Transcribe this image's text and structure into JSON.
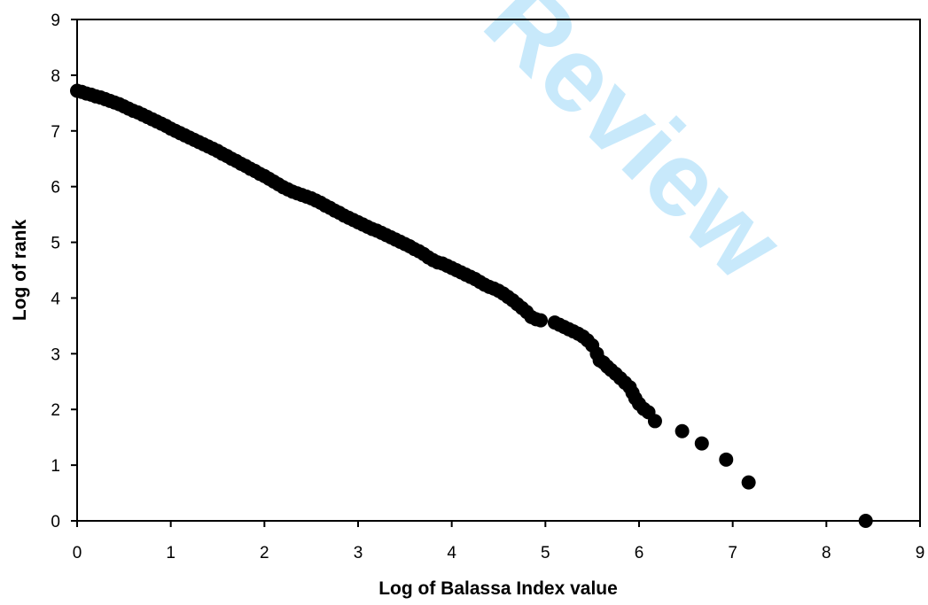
{
  "watermark_text": "Review",
  "watermark_color": "#bfe6fb",
  "chart_data": {
    "type": "scatter",
    "title": "",
    "xlabel": "Log of Balassa Index value",
    "ylabel": "Log of rank",
    "xlim": [
      0,
      9
    ],
    "ylim": [
      0,
      9
    ],
    "x_ticks": [
      "0",
      "1",
      "2",
      "3",
      "4",
      "5",
      "6",
      "7",
      "8",
      "9"
    ],
    "y_ticks": [
      "0",
      "1",
      "2",
      "3",
      "4",
      "5",
      "6",
      "7",
      "8",
      "9"
    ],
    "grid": false,
    "legend": "none",
    "marker_color": "#000000",
    "series": [
      {
        "points": [
          [
            0.0,
            7.72
          ],
          [
            0.05,
            7.7
          ],
          [
            0.1,
            7.67
          ],
          [
            0.15,
            7.65
          ],
          [
            0.2,
            7.62
          ],
          [
            0.25,
            7.6
          ],
          [
            0.3,
            7.57
          ],
          [
            0.35,
            7.54
          ],
          [
            0.4,
            7.51
          ],
          [
            0.45,
            7.48
          ],
          [
            0.5,
            7.44
          ],
          [
            0.55,
            7.4
          ],
          [
            0.6,
            7.36
          ],
          [
            0.65,
            7.33
          ],
          [
            0.7,
            7.29
          ],
          [
            0.75,
            7.25
          ],
          [
            0.8,
            7.21
          ],
          [
            0.85,
            7.17
          ],
          [
            0.9,
            7.13
          ],
          [
            0.95,
            7.09
          ],
          [
            1.0,
            7.04
          ],
          [
            1.05,
            7.0
          ],
          [
            1.1,
            6.96
          ],
          [
            1.15,
            6.92
          ],
          [
            1.2,
            6.88
          ],
          [
            1.25,
            6.84
          ],
          [
            1.3,
            6.8
          ],
          [
            1.35,
            6.76
          ],
          [
            1.4,
            6.72
          ],
          [
            1.45,
            6.68
          ],
          [
            1.5,
            6.64
          ],
          [
            1.55,
            6.59
          ],
          [
            1.6,
            6.55
          ],
          [
            1.65,
            6.5
          ],
          [
            1.7,
            6.46
          ],
          [
            1.75,
            6.41
          ],
          [
            1.8,
            6.37
          ],
          [
            1.85,
            6.32
          ],
          [
            1.9,
            6.28
          ],
          [
            1.95,
            6.23
          ],
          [
            2.0,
            6.19
          ],
          [
            2.05,
            6.14
          ],
          [
            2.1,
            6.09
          ],
          [
            2.15,
            6.04
          ],
          [
            2.2,
            5.99
          ],
          [
            2.25,
            5.95
          ],
          [
            2.3,
            5.91
          ],
          [
            2.35,
            5.88
          ],
          [
            2.4,
            5.85
          ],
          [
            2.45,
            5.82
          ],
          [
            2.5,
            5.79
          ],
          [
            2.55,
            5.75
          ],
          [
            2.6,
            5.71
          ],
          [
            2.65,
            5.66
          ],
          [
            2.7,
            5.62
          ],
          [
            2.75,
            5.57
          ],
          [
            2.8,
            5.53
          ],
          [
            2.85,
            5.48
          ],
          [
            2.9,
            5.44
          ],
          [
            2.95,
            5.4
          ],
          [
            3.0,
            5.36
          ],
          [
            3.05,
            5.32
          ],
          [
            3.1,
            5.28
          ],
          [
            3.15,
            5.24
          ],
          [
            3.2,
            5.21
          ],
          [
            3.25,
            5.17
          ],
          [
            3.3,
            5.13
          ],
          [
            3.35,
            5.09
          ],
          [
            3.4,
            5.05
          ],
          [
            3.45,
            5.01
          ],
          [
            3.5,
            4.97
          ],
          [
            3.55,
            4.93
          ],
          [
            3.6,
            4.88
          ],
          [
            3.65,
            4.84
          ],
          [
            3.7,
            4.79
          ],
          [
            3.75,
            4.73
          ],
          [
            3.8,
            4.68
          ],
          [
            3.85,
            4.64
          ],
          [
            3.9,
            4.62
          ],
          [
            3.95,
            4.58
          ],
          [
            4.0,
            4.54
          ],
          [
            4.05,
            4.5
          ],
          [
            4.1,
            4.46
          ],
          [
            4.15,
            4.42
          ],
          [
            4.2,
            4.38
          ],
          [
            4.25,
            4.34
          ],
          [
            4.3,
            4.29
          ],
          [
            4.35,
            4.24
          ],
          [
            4.4,
            4.2
          ],
          [
            4.45,
            4.17
          ],
          [
            4.5,
            4.13
          ],
          [
            4.55,
            4.08
          ],
          [
            4.6,
            4.02
          ],
          [
            4.65,
            3.96
          ],
          [
            4.7,
            3.89
          ],
          [
            4.75,
            3.82
          ],
          [
            4.8,
            3.75
          ],
          [
            4.85,
            3.66
          ],
          [
            4.9,
            3.62
          ],
          [
            4.95,
            3.6
          ],
          [
            5.1,
            3.56
          ],
          [
            5.15,
            3.52
          ],
          [
            5.2,
            3.48
          ],
          [
            5.25,
            3.44
          ],
          [
            5.3,
            3.4
          ],
          [
            5.35,
            3.36
          ],
          [
            5.4,
            3.31
          ],
          [
            5.45,
            3.24
          ],
          [
            5.5,
            3.15
          ],
          [
            5.55,
            3.0
          ],
          [
            5.58,
            2.88
          ],
          [
            5.62,
            2.84
          ],
          [
            5.66,
            2.77
          ],
          [
            5.7,
            2.71
          ],
          [
            5.75,
            2.64
          ],
          [
            5.8,
            2.56
          ],
          [
            5.85,
            2.48
          ],
          [
            5.9,
            2.4
          ],
          [
            5.93,
            2.3
          ],
          [
            5.96,
            2.2
          ],
          [
            6.0,
            2.1
          ],
          [
            6.05,
            2.01
          ],
          [
            6.1,
            1.95
          ],
          [
            6.17,
            1.79
          ],
          [
            6.46,
            1.61
          ],
          [
            6.67,
            1.39
          ],
          [
            6.93,
            1.1
          ],
          [
            7.17,
            0.69
          ],
          [
            8.42,
            0.0
          ]
        ]
      }
    ]
  }
}
